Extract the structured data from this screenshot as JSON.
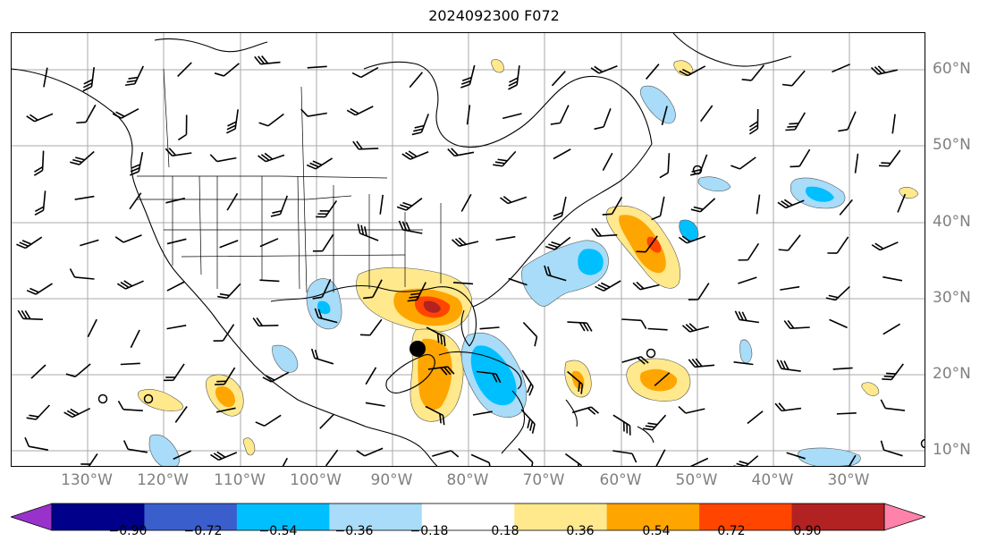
{
  "title": "2024092300 F072",
  "map": {
    "longitude_labels": [
      "130°W",
      "120°W",
      "110°W",
      "100°W",
      "90°W",
      "80°W",
      "70°W",
      "60°W",
      "50°W",
      "40°W",
      "30°W"
    ],
    "latitude_labels": [
      "60°N",
      "50°N",
      "40°N",
      "30°N",
      "20°N",
      "10°N"
    ],
    "gridline_color": "#a9a9a9",
    "coastline_color": "#000000"
  },
  "colorbar": {
    "tick_labels": [
      "−0.90",
      "−0.72",
      "−0.54",
      "−0.36",
      "−0.18",
      "0.18",
      "0.36",
      "0.54",
      "0.72",
      "0.90"
    ],
    "colors": [
      "#9932cc",
      "#00008b",
      "#3a5fcd",
      "#00bfff",
      "#a8dcf8",
      "#ffffff",
      "#ffe98c",
      "#ffa500",
      "#ff4500",
      "#b22222",
      "#ff82ab"
    ],
    "extend": "both"
  }
}
